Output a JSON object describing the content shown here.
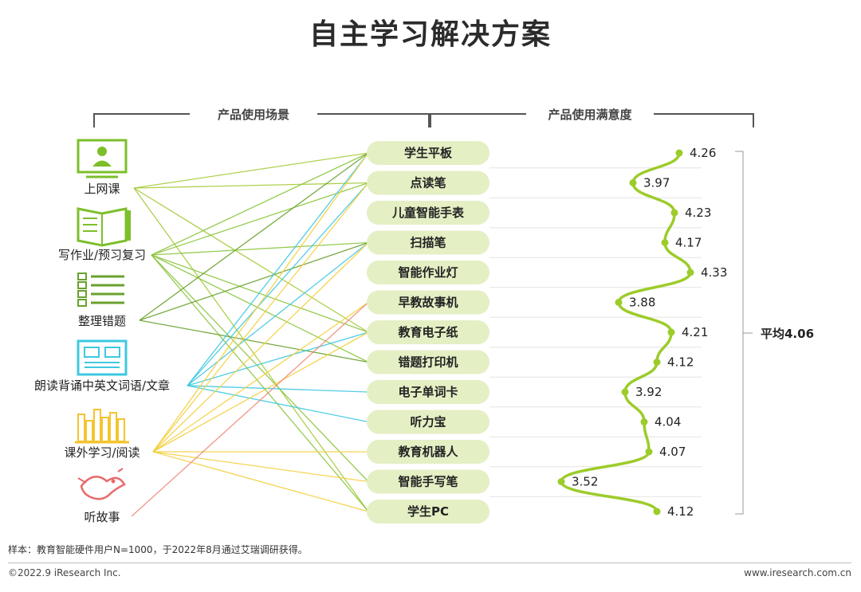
{
  "title": "自主学习解决方案",
  "sections": {
    "left": "产品使用场景",
    "right": "产品使用满意度"
  },
  "scenes": [
    {
      "label": "上网课",
      "icon": "online-class-icon"
    },
    {
      "label": "写作业/预习复习",
      "icon": "homework-book-icon"
    },
    {
      "label": "整理错题",
      "icon": "list-check-icon"
    },
    {
      "label": "朗读背诵中英文词语/文章",
      "icon": "reading-text-icon"
    },
    {
      "label": "课外学习/阅读",
      "icon": "books-icon"
    },
    {
      "label": "听故事",
      "icon": "dragon-story-icon"
    }
  ],
  "chart_data": {
    "type": "line",
    "title": "产品使用满意度",
    "categories": [
      "学生平板",
      "点读笔",
      "儿童智能手表",
      "扫描笔",
      "智能作业灯",
      "早教故事机",
      "教育电子纸",
      "错题打印机",
      "电子单词卡",
      "听力宝",
      "教育机器人",
      "智能手写笔",
      "学生PC"
    ],
    "values": [
      4.26,
      3.97,
      4.23,
      4.17,
      4.33,
      3.88,
      4.21,
      4.12,
      3.92,
      4.04,
      4.07,
      3.52,
      4.12
    ],
    "value_labels": [
      "4.26",
      "3.97",
      "4.23",
      "4.17",
      "4.33",
      "3.88",
      "4.21",
      "4.12",
      "3.92",
      "4.04",
      "4.07",
      "3.52",
      "4.12"
    ],
    "xlim": [
      3.3,
      4.6
    ],
    "average": 4.06,
    "average_label": "平均4.06",
    "series_color": "#9ccc2a"
  },
  "connections": [
    {
      "scene": 0,
      "products": [
        0,
        1,
        6,
        12
      ],
      "color": "#a6cc3a"
    },
    {
      "scene": 1,
      "products": [
        0,
        1,
        3,
        6,
        7,
        11,
        12
      ],
      "color": "#8cc63f"
    },
    {
      "scene": 2,
      "products": [
        0,
        3,
        7
      ],
      "color": "#6aa12e"
    },
    {
      "scene": 3,
      "products": [
        0,
        1,
        3,
        6,
        8,
        9
      ],
      "color": "#3ec8e0"
    },
    {
      "scene": 4,
      "products": [
        0,
        1,
        3,
        5,
        6,
        10,
        11,
        12
      ],
      "color": "#f4d03f"
    },
    {
      "scene": 5,
      "products": [
        5
      ],
      "color": "#f08a7a"
    }
  ],
  "footnote": "样本：教育智能硬件用户N=1000，于2022年8月通过艾瑞调研获得。",
  "footer": {
    "left": "©2022.9 iResearch Inc.",
    "right": "www.iresearch.com.cn"
  }
}
